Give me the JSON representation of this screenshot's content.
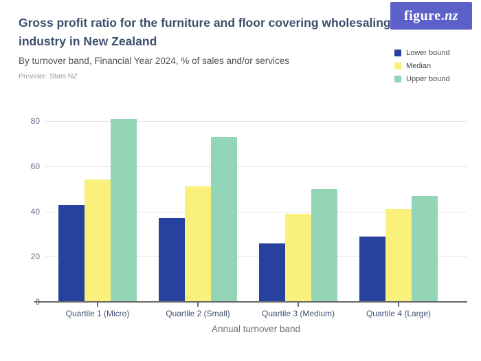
{
  "header": {
    "title": "Gross profit ratio for the furniture and floor covering wholesaling industry in New Zealand",
    "subtitle": "By turnover band, Financial Year 2024, % of sales and/or services",
    "provider": "Provider: Stats NZ",
    "logo": {
      "prefix": "figure.",
      "suffix": "nz"
    },
    "logo_bg": "#5c61c9"
  },
  "chart_data": {
    "type": "bar",
    "categories": [
      "Quartile 1 (Micro)",
      "Quartile 2 (Small)",
      "Quartile 3 (Medium)",
      "Quartile 4 (Large)"
    ],
    "series": [
      {
        "name": "Lower bound",
        "color": "#27429e",
        "values": [
          43,
          37,
          26,
          29
        ]
      },
      {
        "name": "Median",
        "color": "#f9f17c",
        "values": [
          54,
          51,
          39,
          41
        ]
      },
      {
        "name": "Upper bound",
        "color": "#94d5b8",
        "values": [
          81,
          73,
          50,
          47
        ]
      }
    ],
    "xlabel": "Annual turnover band",
    "ylabel": "",
    "yticks": [
      0,
      20,
      40,
      60,
      80
    ],
    "ylim": [
      0,
      87
    ],
    "grid": true,
    "legend_position": "top-right"
  }
}
